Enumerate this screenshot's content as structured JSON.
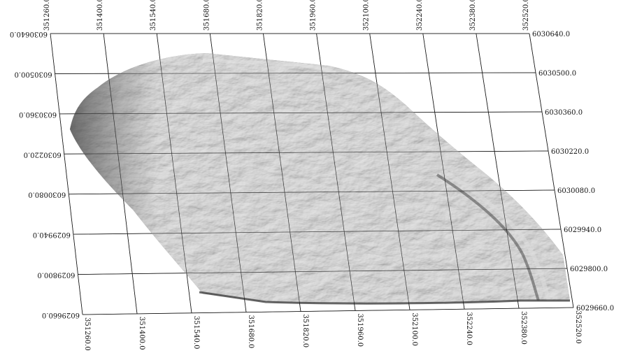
{
  "map": {
    "title": "",
    "easting_labels": [
      "351260.0",
      "351400.0",
      "351540.0",
      "351680.0",
      "351820.0",
      "351960.0",
      "352100.0",
      "352240.0",
      "352380.0",
      "352520.0"
    ],
    "northing_labels": [
      "6030640.0",
      "6030500.0",
      "6030360.0",
      "6030220.0",
      "6030080.0",
      "6029940.0",
      "6029800.0",
      "6029660.0"
    ],
    "surface_color": "#8f8f8f",
    "grid_color": "#1a1a1a",
    "background_color": "#ffffff"
  }
}
